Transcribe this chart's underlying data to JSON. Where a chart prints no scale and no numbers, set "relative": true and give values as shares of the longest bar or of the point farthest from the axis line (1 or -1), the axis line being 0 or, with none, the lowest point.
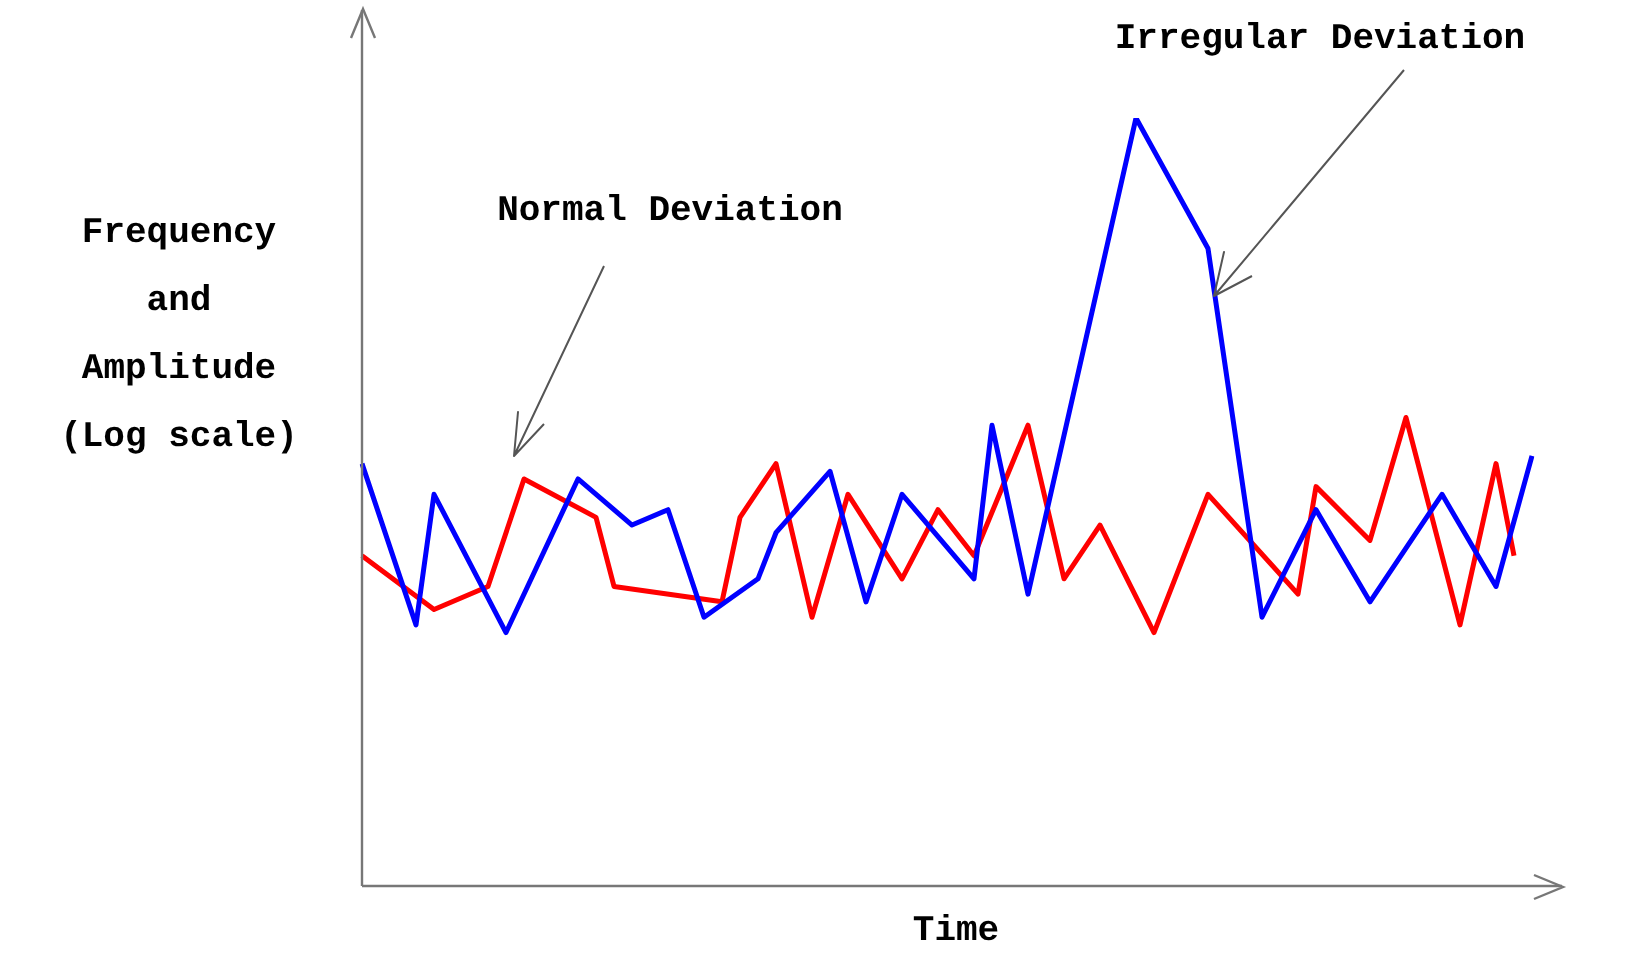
{
  "chart_data": {
    "type": "line",
    "relative": true,
    "xlabel": "Time",
    "ylabel": "Frequency and Amplitude (Log scale)",
    "legend": false,
    "marker": "none",
    "categories": [
      null,
      null,
      null,
      null,
      null,
      null,
      null,
      null,
      null,
      null,
      null,
      null,
      null,
      null,
      null,
      null,
      null,
      null,
      null,
      null,
      null,
      null,
      null,
      null,
      null,
      null,
      null,
      null,
      null,
      null,
      null,
      null,
      null,
      null,
      null,
      null,
      null,
      null,
      null,
      null,
      null,
      null,
      null,
      null,
      null,
      null,
      null,
      null,
      null,
      null,
      null,
      null,
      null,
      null,
      null,
      null,
      null,
      null,
      null,
      null,
      null,
      null,
      null,
      null,
      null,
      null
    ],
    "series": [
      {
        "color": "#0000ff",
        "values": [
          0.55,
          null,
          null,
          0.34,
          0.51,
          null,
          null,
          null,
          0.33,
          null,
          null,
          null,
          0.53,
          null,
          null,
          0.47,
          null,
          0.49,
          null,
          0.35,
          null,
          null,
          0.4,
          0.46,
          null,
          null,
          0.54,
          null,
          0.37,
          null,
          0.51,
          null,
          null,
          null,
          0.4,
          0.6,
          null,
          0.38,
          null,
          null,
          null,
          null,
          null,
          1,
          null,
          null,
          null,
          0.83,
          null,
          null,
          0.35,
          null,
          null,
          0.49,
          null,
          null,
          0.37,
          null,
          null,
          null,
          0.51,
          null,
          null,
          0.39,
          null,
          0.56
        ]
      },
      {
        "color": "#ff0000",
        "values": [
          0.43,
          null,
          null,
          null,
          0.36,
          null,
          null,
          0.39,
          null,
          0.53,
          null,
          null,
          null,
          0.48,
          0.39,
          null,
          null,
          null,
          null,
          null,
          0.37,
          0.48,
          null,
          0.55,
          null,
          0.35,
          null,
          0.51,
          null,
          null,
          0.4,
          null,
          0.49,
          null,
          0.43,
          null,
          null,
          0.6,
          null,
          0.4,
          null,
          0.47,
          null,
          null,
          0.33,
          null,
          null,
          0.51,
          null,
          null,
          null,
          null,
          0.38,
          0.52,
          null,
          null,
          0.45,
          null,
          0.61,
          null,
          null,
          0.34,
          null,
          0.55,
          0.43,
          null
        ]
      }
    ],
    "annotations": [
      "Normal Deviation",
      "Irregular Deviation"
    ]
  }
}
